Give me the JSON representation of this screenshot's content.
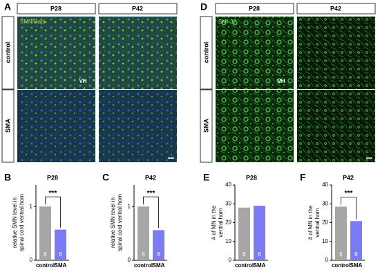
{
  "figure": {
    "panels": [
      {
        "label": "A",
        "columns": [
          "P28",
          "P42"
        ],
        "rows": [
          "control",
          "SMA"
        ],
        "stain": "SMN/Dapi",
        "region": "VH"
      },
      {
        "label": "D",
        "columns": [
          "P28",
          "P42"
        ],
        "rows": [
          "control",
          "SMA"
        ],
        "stain": "SMI-32",
        "region": "VH"
      }
    ]
  },
  "chart_data": [
    {
      "type": "bar",
      "panel": "B",
      "title": "P28",
      "ylabel": [
        "relative SMN level in",
        "spinal cord ventral horn"
      ],
      "categories": [
        "control",
        "SMA"
      ],
      "values": [
        1.0,
        0.57
      ],
      "colors": [
        "#a6a6a6",
        "#7b7bf5"
      ],
      "n_labels": [
        "6",
        "6"
      ],
      "significance": "***",
      "ylim": [
        0,
        1.4
      ],
      "yticks": [
        0,
        1
      ]
    },
    {
      "type": "bar",
      "panel": "C",
      "title": "P42",
      "ylabel": [
        "relative SMN level in",
        "spinal cord ventral horn"
      ],
      "categories": [
        "control",
        "SMA"
      ],
      "values": [
        1.0,
        0.56
      ],
      "colors": [
        "#a6a6a6",
        "#7b7bf5"
      ],
      "n_labels": [
        "6",
        "6"
      ],
      "significance": "***",
      "ylim": [
        0,
        1.4
      ],
      "yticks": [
        0,
        1
      ]
    },
    {
      "type": "bar",
      "panel": "E",
      "title": "P28",
      "ylabel": [
        "# of MN in the",
        "ventral horn"
      ],
      "categories": [
        "control",
        "SMA"
      ],
      "values": [
        28,
        29
      ],
      "colors": [
        "#a6a6a6",
        "#7b7bf5"
      ],
      "n_labels": [
        "6",
        "6"
      ],
      "ylim": [
        0,
        40
      ],
      "yticks": [
        0,
        10,
        20,
        30,
        40
      ]
    },
    {
      "type": "bar",
      "panel": "F",
      "title": "P42",
      "ylabel": [
        "# of MN in the",
        "ventral horn"
      ],
      "categories": [
        "control",
        "SMA"
      ],
      "values": [
        28.5,
        20.8
      ],
      "colors": [
        "#a6a6a6",
        "#7b7bf5"
      ],
      "n_labels": [
        "6",
        "6"
      ],
      "significance": "***",
      "ylim": [
        0,
        40
      ],
      "yticks": [
        0,
        10,
        20,
        30,
        40
      ]
    }
  ]
}
